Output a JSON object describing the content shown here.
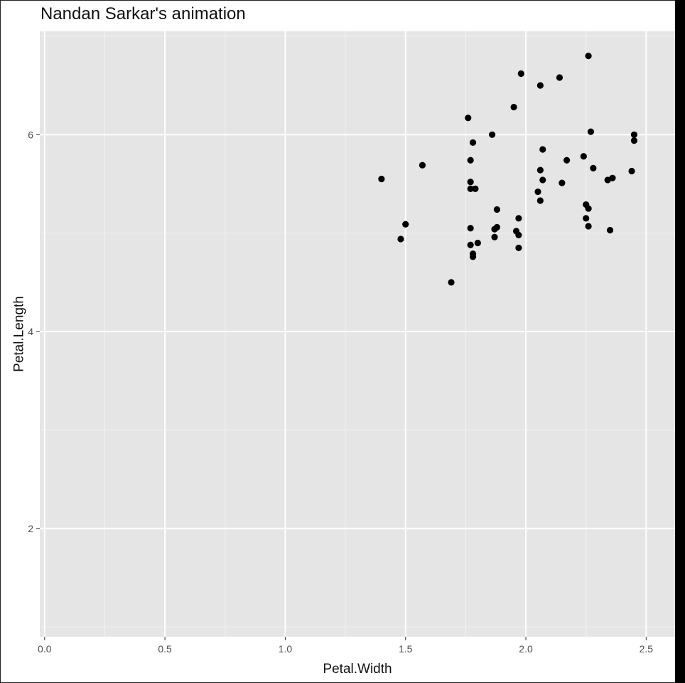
{
  "chart_data": {
    "type": "scatter",
    "title": "Nandan Sarkar's animation",
    "xlabel": "Petal.Width",
    "ylabel": "Petal.Length",
    "xlim": [
      -0.02,
      2.62
    ],
    "ylim": [
      0.9,
      7.05
    ],
    "x_ticks": [
      0.0,
      0.5,
      1.0,
      1.5,
      2.0,
      2.5
    ],
    "x_tick_labels": [
      "0.0",
      "0.5",
      "1.0",
      "1.5",
      "2.0",
      "2.5"
    ],
    "y_ticks": [
      2,
      4,
      6
    ],
    "y_tick_labels": [
      "2",
      "4",
      "6"
    ],
    "grid": true,
    "point_color": "#000000",
    "panel_color": "#e5e5e5",
    "points": [
      {
        "x": 1.4,
        "y": 5.55
      },
      {
        "x": 1.48,
        "y": 4.94
      },
      {
        "x": 1.5,
        "y": 5.09
      },
      {
        "x": 1.57,
        "y": 5.69
      },
      {
        "x": 1.69,
        "y": 4.5
      },
      {
        "x": 1.76,
        "y": 6.17
      },
      {
        "x": 1.77,
        "y": 4.88
      },
      {
        "x": 1.77,
        "y": 5.05
      },
      {
        "x": 1.77,
        "y": 5.45
      },
      {
        "x": 1.77,
        "y": 5.52
      },
      {
        "x": 1.77,
        "y": 5.74
      },
      {
        "x": 1.78,
        "y": 5.92
      },
      {
        "x": 1.78,
        "y": 4.76
      },
      {
        "x": 1.78,
        "y": 4.79
      },
      {
        "x": 1.79,
        "y": 5.45
      },
      {
        "x": 1.8,
        "y": 4.9
      },
      {
        "x": 1.86,
        "y": 6.0
      },
      {
        "x": 1.87,
        "y": 5.04
      },
      {
        "x": 1.87,
        "y": 4.96
      },
      {
        "x": 1.88,
        "y": 5.06
      },
      {
        "x": 1.88,
        "y": 5.24
      },
      {
        "x": 1.95,
        "y": 6.28
      },
      {
        "x": 1.96,
        "y": 5.02
      },
      {
        "x": 1.97,
        "y": 5.15
      },
      {
        "x": 1.97,
        "y": 4.85
      },
      {
        "x": 1.97,
        "y": 4.98
      },
      {
        "x": 1.98,
        "y": 6.62
      },
      {
        "x": 2.05,
        "y": 5.42
      },
      {
        "x": 2.06,
        "y": 5.64
      },
      {
        "x": 2.06,
        "y": 5.33
      },
      {
        "x": 2.06,
        "y": 6.5
      },
      {
        "x": 2.07,
        "y": 5.54
      },
      {
        "x": 2.07,
        "y": 5.85
      },
      {
        "x": 2.14,
        "y": 6.58
      },
      {
        "x": 2.15,
        "y": 5.51
      },
      {
        "x": 2.17,
        "y": 5.74
      },
      {
        "x": 2.24,
        "y": 5.78
      },
      {
        "x": 2.25,
        "y": 5.29
      },
      {
        "x": 2.25,
        "y": 5.15
      },
      {
        "x": 2.26,
        "y": 5.25
      },
      {
        "x": 2.26,
        "y": 5.07
      },
      {
        "x": 2.26,
        "y": 6.8
      },
      {
        "x": 2.27,
        "y": 6.03
      },
      {
        "x": 2.28,
        "y": 5.66
      },
      {
        "x": 2.34,
        "y": 5.54
      },
      {
        "x": 2.35,
        "y": 5.03
      },
      {
        "x": 2.36,
        "y": 5.56
      },
      {
        "x": 2.44,
        "y": 5.63
      },
      {
        "x": 2.45,
        "y": 5.94
      },
      {
        "x": 2.45,
        "y": 6.0
      }
    ]
  }
}
